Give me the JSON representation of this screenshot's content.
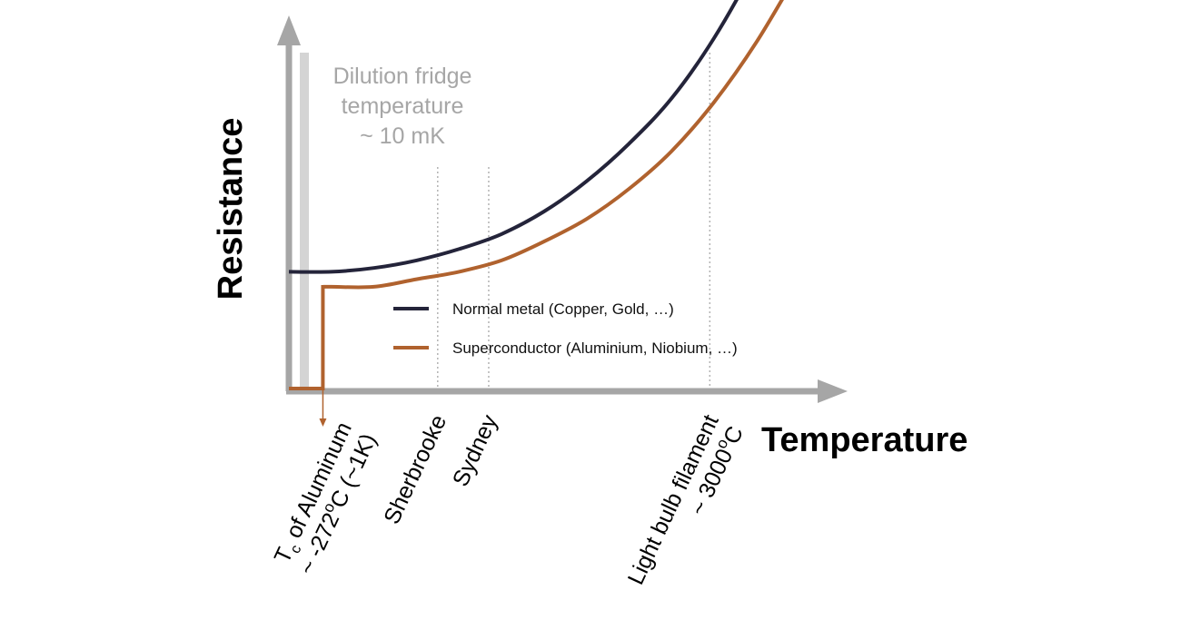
{
  "colors": {
    "axis": "#a6a6a6",
    "normal_metal": "#24243a",
    "superconductor": "#b0622e",
    "fridge_bar": "#d4d4d4",
    "fridge_text": "#a6a6a6",
    "guide": "#b3b3b3"
  },
  "fridge": {
    "line1": "Dilution fridge",
    "line2": "temperature",
    "line3": "~ 10 mK"
  },
  "chart_data": {
    "type": "line",
    "xlabel": "Temperature",
    "ylabel": "Resistance",
    "grid": false,
    "legend_position": "center-right, inside plot",
    "reference_lines": [
      {
        "id": "sherbrooke",
        "lines": [
          "Sherbrooke"
        ],
        "x": 0.35
      },
      {
        "id": "sydney",
        "lines": [
          "Sydney"
        ],
        "x": 0.47
      },
      {
        "id": "filament",
        "lines": [
          "Light bulb filament",
          "~ 3000oC"
        ],
        "x": 0.99
      }
    ],
    "tc_marker": {
      "lines": [
        "Tc of Aluminum",
        "~ -272oC (~1K)"
      ],
      "subscript": "c",
      "x": 0.08
    },
    "series": [
      {
        "name": "Normal metal (Copper, Gold, …)",
        "key": "normal_metal",
        "x": [
          0,
          0.1,
          0.2,
          0.3,
          0.4,
          0.5,
          0.6,
          0.7,
          0.8,
          0.9,
          1.0,
          1.1,
          1.2
        ],
        "y": [
          0.31,
          0.31,
          0.32,
          0.34,
          0.37,
          0.41,
          0.47,
          0.55,
          0.65,
          0.77,
          0.93,
          1.13,
          1.36
        ]
      },
      {
        "name": "Superconductor (Aluminium, Niobium, …)",
        "key": "superconductor",
        "x": [
          0,
          0.08,
          0.08,
          0.1,
          0.2,
          0.3,
          0.4,
          0.5,
          0.6,
          0.7,
          0.8,
          0.9,
          1.0,
          1.1,
          1.2
        ],
        "y": [
          0,
          0,
          0.27,
          0.27,
          0.27,
          0.29,
          0.31,
          0.34,
          0.39,
          0.45,
          0.53,
          0.63,
          0.76,
          0.92,
          1.11
        ]
      }
    ]
  }
}
